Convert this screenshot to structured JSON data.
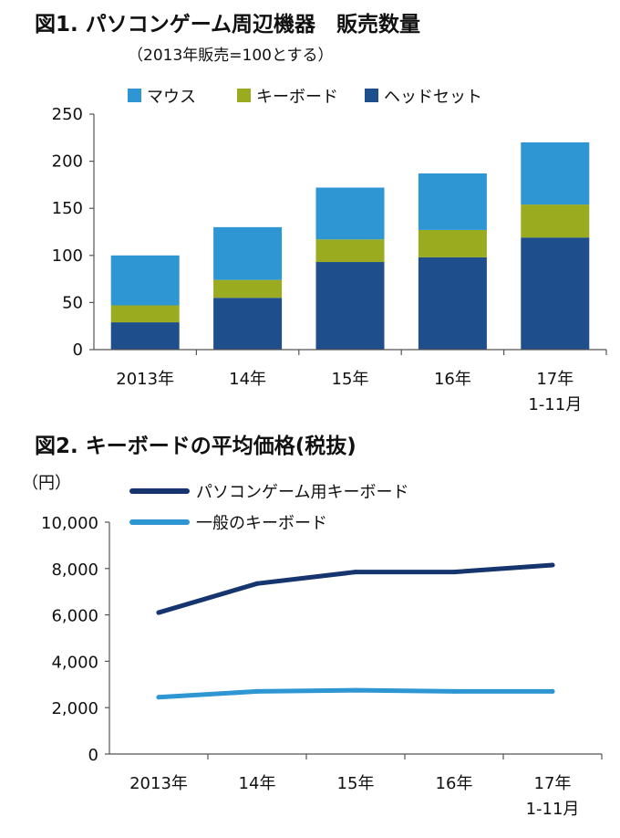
{
  "chart_data": [
    {
      "type": "bar",
      "stacked": true,
      "title": "図1. パソコンゲーム周辺機器　販売数量",
      "subtitle": "（2013年販売=100とする）",
      "categories": [
        "2013年",
        "14年",
        "15年",
        "16年",
        "17年"
      ],
      "category_sublabels": [
        "",
        "",
        "",
        "",
        "1-11月"
      ],
      "series": [
        {
          "name": "ヘッドセット",
          "color": "#1f4e8c",
          "values": [
            29,
            55,
            93,
            98,
            119
          ]
        },
        {
          "name": "キーボード",
          "color": "#9aab1f",
          "values": [
            18,
            19,
            24,
            29,
            35
          ]
        },
        {
          "name": "マウス",
          "color": "#2e96d3",
          "values": [
            53,
            56,
            55,
            60,
            66
          ]
        }
      ],
      "legend_order": [
        "マウス",
        "キーボード",
        "ヘッドセット"
      ],
      "ylim": [
        0,
        250
      ],
      "yticks": [
        "0",
        "50",
        "100",
        "150",
        "200",
        "250"
      ],
      "ytick_values": [
        0,
        50,
        100,
        150,
        200,
        250
      ],
      "xlabel": "",
      "ylabel": ""
    },
    {
      "type": "line",
      "title": "図2. キーボードの平均価格(税抜)",
      "ylabel": "（円）",
      "categories": [
        "2013年",
        "14年",
        "15年",
        "16年",
        "17年"
      ],
      "category_sublabels": [
        "",
        "",
        "",
        "",
        "1-11月"
      ],
      "series": [
        {
          "name": "パソコンゲーム用キーボード",
          "color": "#16356f",
          "values": [
            6100,
            7350,
            7850,
            7850,
            8150
          ]
        },
        {
          "name": "一般のキーボード",
          "color": "#2e96d3",
          "values": [
            2450,
            2700,
            2750,
            2700,
            2700
          ]
        }
      ],
      "ylim": [
        0,
        10000
      ],
      "yticks": [
        "0",
        "2,000",
        "4,000",
        "6,000",
        "8,000",
        "10,000"
      ],
      "ytick_values": [
        0,
        2000,
        4000,
        6000,
        8000,
        10000
      ]
    }
  ]
}
